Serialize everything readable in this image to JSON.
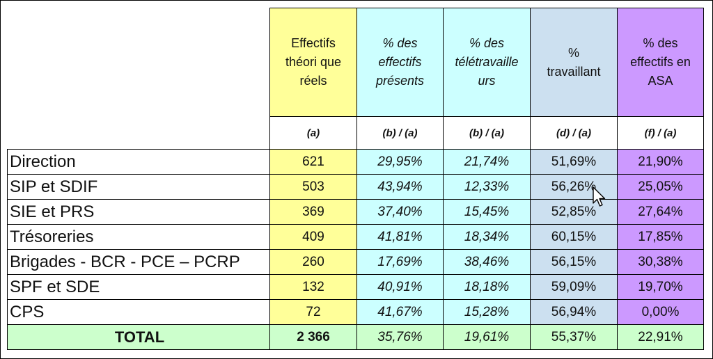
{
  "headers": [
    {
      "title": "Effectifs\nthéori que\nréels",
      "formula": "(a)"
    },
    {
      "title": "% des\neffectifs\nprésents",
      "formula": "(b) / (a)"
    },
    {
      "title": "% des\ntélétravaille\nurs",
      "formula": "(b) / (a)"
    },
    {
      "title": "%\ntravaillant",
      "formula": "(d) / (a)"
    },
    {
      "title": "% des\neffectifs en\nASA",
      "formula": "(f) / (a)"
    }
  ],
  "rows": [
    {
      "label": "Direction",
      "values": [
        "621",
        "29,95%",
        "21,74%",
        "51,69%",
        "21,90%"
      ]
    },
    {
      "label": "SIP et SDIF",
      "values": [
        "503",
        "43,94%",
        "12,33%",
        "56,26%",
        "25,05%"
      ]
    },
    {
      "label": "SIE et PRS",
      "values": [
        "369",
        "37,40%",
        "15,45%",
        "52,85%",
        "27,64%"
      ]
    },
    {
      "label": "Trésoreries",
      "values": [
        "409",
        "41,81%",
        "18,34%",
        "60,15%",
        "17,85%"
      ]
    },
    {
      "label": "Brigades - BCR - PCE – PCRP",
      "values": [
        "260",
        "17,69%",
        "38,46%",
        "56,15%",
        "30,38%"
      ]
    },
    {
      "label": "SPF et SDE",
      "values": [
        "132",
        "40,91%",
        "18,18%",
        "59,09%",
        "19,70%"
      ]
    },
    {
      "label": "CPS",
      "values": [
        "72",
        "41,67%",
        "15,28%",
        "56,94%",
        "0,00%"
      ]
    }
  ],
  "total": {
    "label": "TOTAL",
    "values": [
      "2 366",
      "35,76%",
      "19,61%",
      "55,37%",
      "22,91%"
    ]
  },
  "colors": {
    "yellow": "#ffff99",
    "cyan": "#ccffff",
    "blue": "#cce0f0",
    "purple": "#cc99ff",
    "green": "#ccffcc"
  }
}
